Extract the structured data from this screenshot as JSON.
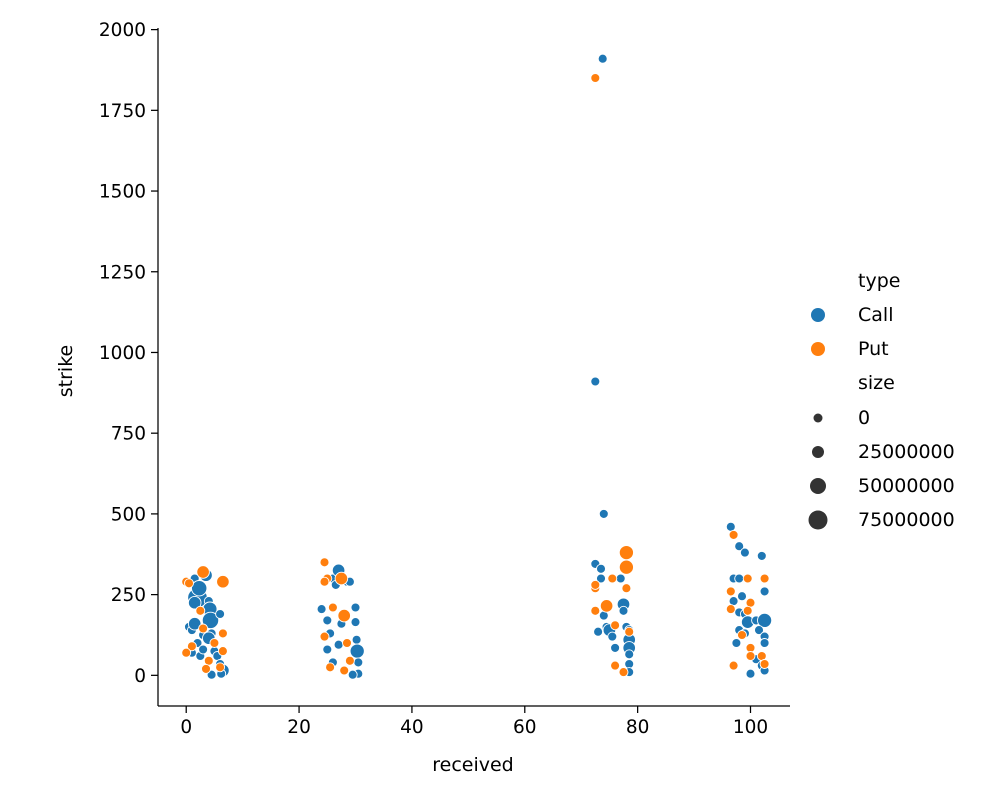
{
  "chart_data": {
    "type": "scatter",
    "title": "",
    "xlabel": "received",
    "ylabel": "strike",
    "xlim": [
      -5,
      107
    ],
    "ylim": [
      -95,
      2005
    ],
    "xticks": [
      0,
      20,
      40,
      60,
      80,
      100
    ],
    "yticks": [
      0,
      250,
      500,
      750,
      1000,
      1250,
      1500,
      1750,
      2000
    ],
    "xtick_labels": [
      "0",
      "20",
      "40",
      "60",
      "80",
      "100"
    ],
    "ytick_labels": [
      "0",
      "250",
      "500",
      "750",
      "1000",
      "1250",
      "1500",
      "1750",
      "2000"
    ],
    "grid": false,
    "legend_placement": "right",
    "hue_title": "type",
    "size_title": "size",
    "hue_colors": {
      "Call": "#1f77b4",
      "Put": "#ff7f0e"
    },
    "size_legend_color": "#333333",
    "size_legend": [
      {
        "label": "0",
        "value": 0
      },
      {
        "label": "25000000",
        "value": 25000000
      },
      {
        "label": "50000000",
        "value": 50000000
      },
      {
        "label": "75000000",
        "value": 75000000
      }
    ],
    "series": [
      {
        "name": "Call",
        "points": [
          [
            1.5,
            300,
            0
          ],
          [
            2,
            240,
            85000000
          ],
          [
            1.5,
            225,
            10000000
          ],
          [
            0.5,
            150,
            0
          ],
          [
            1,
            140,
            0
          ],
          [
            1.5,
            160,
            10000000
          ],
          [
            2,
            100,
            0
          ],
          [
            1,
            70,
            0
          ],
          [
            2.5,
            60,
            0
          ],
          [
            3,
            125,
            0
          ],
          [
            3.5,
            310,
            10000000
          ],
          [
            4,
            230,
            0
          ],
          [
            4.2,
            205,
            20000000
          ],
          [
            4.3,
            170,
            40000000
          ],
          [
            4.5,
            130,
            0
          ],
          [
            4,
            115,
            10000000
          ],
          [
            5,
            75,
            0
          ],
          [
            5.5,
            60,
            0
          ],
          [
            6,
            190,
            0
          ],
          [
            6,
            35,
            0
          ],
          [
            6.5,
            15,
            10000000
          ],
          [
            6.2,
            5,
            0
          ],
          [
            4.5,
            2,
            0
          ],
          [
            2.3,
            270,
            30000000
          ],
          [
            3,
            80,
            0
          ],
          [
            24,
            205,
            0
          ],
          [
            25,
            170,
            0
          ],
          [
            25.5,
            130,
            0
          ],
          [
            26,
            300,
            0
          ],
          [
            26.5,
            280,
            0
          ],
          [
            27,
            325,
            10000000
          ],
          [
            27.5,
            160,
            0
          ],
          [
            27,
            95,
            0
          ],
          [
            28.5,
            290,
            0
          ],
          [
            29,
            290,
            0
          ],
          [
            30,
            210,
            0
          ],
          [
            30,
            165,
            0
          ],
          [
            30.2,
            110,
            0
          ],
          [
            30.3,
            75,
            20000000
          ],
          [
            30.5,
            40,
            0
          ],
          [
            30.5,
            5,
            0
          ],
          [
            29.5,
            2,
            0
          ],
          [
            26,
            40,
            0
          ],
          [
            25,
            80,
            0
          ],
          [
            72.5,
            910,
            0
          ],
          [
            73.8,
            1910,
            0
          ],
          [
            74,
            500,
            0
          ],
          [
            72.5,
            345,
            0
          ],
          [
            73.5,
            330,
            0
          ],
          [
            73.5,
            300,
            0
          ],
          [
            74,
            185,
            0
          ],
          [
            74.5,
            150,
            0
          ],
          [
            75,
            140,
            10000000
          ],
          [
            73,
            135,
            0
          ],
          [
            75.5,
            120,
            0
          ],
          [
            76,
            85,
            0
          ],
          [
            77,
            300,
            0
          ],
          [
            77.5,
            220,
            10000000
          ],
          [
            77.5,
            200,
            0
          ],
          [
            78,
            150,
            0
          ],
          [
            78.5,
            140,
            0
          ],
          [
            78.5,
            110,
            10000000
          ],
          [
            78.5,
            85,
            10000000
          ],
          [
            78.5,
            65,
            0
          ],
          [
            78.5,
            35,
            0
          ],
          [
            78.5,
            10,
            0
          ],
          [
            96.5,
            460,
            0
          ],
          [
            98,
            400,
            0
          ],
          [
            99,
            380,
            0
          ],
          [
            102,
            370,
            0
          ],
          [
            97,
            300,
            0
          ],
          [
            98,
            300,
            0
          ],
          [
            98.5,
            245,
            0
          ],
          [
            102.5,
            260,
            0
          ],
          [
            97,
            230,
            0
          ],
          [
            98,
            195,
            0
          ],
          [
            99,
            190,
            0
          ],
          [
            99.5,
            165,
            10000000
          ],
          [
            101,
            170,
            0
          ],
          [
            102.5,
            170,
            20000000
          ],
          [
            98,
            140,
            0
          ],
          [
            99,
            130,
            0
          ],
          [
            101.5,
            140,
            0
          ],
          [
            102.5,
            120,
            0
          ],
          [
            102.5,
            100,
            0
          ],
          [
            97.5,
            100,
            0
          ],
          [
            101,
            50,
            0
          ],
          [
            102,
            30,
            0
          ],
          [
            102.5,
            15,
            0
          ],
          [
            100,
            5,
            0
          ]
        ]
      },
      {
        "name": "Put",
        "points": [
          [
            0,
            290,
            0
          ],
          [
            0.5,
            285,
            0
          ],
          [
            3,
            320,
            10000000
          ],
          [
            2.5,
            200,
            0
          ],
          [
            1,
            90,
            0
          ],
          [
            3,
            145,
            0
          ],
          [
            5,
            100,
            0
          ],
          [
            0,
            70,
            0
          ],
          [
            6.5,
            290,
            10000000
          ],
          [
            6.5,
            130,
            0
          ],
          [
            6.5,
            75,
            0
          ],
          [
            4,
            45,
            0
          ],
          [
            3.5,
            20,
            0
          ],
          [
            6,
            25,
            0
          ],
          [
            24.5,
            350,
            0
          ],
          [
            25,
            300,
            0
          ],
          [
            24.5,
            290,
            0
          ],
          [
            26,
            210,
            0
          ],
          [
            24.5,
            120,
            0
          ],
          [
            27.5,
            300,
            10000000
          ],
          [
            28,
            185,
            10000000
          ],
          [
            28.5,
            100,
            0
          ],
          [
            29,
            45,
            0
          ],
          [
            25.5,
            25,
            0
          ],
          [
            28,
            15,
            0
          ],
          [
            72.5,
            1850,
            0
          ],
          [
            72.5,
            200,
            0
          ],
          [
            72.5,
            270,
            0
          ],
          [
            72.5,
            280,
            0
          ],
          [
            74.5,
            215,
            10000000
          ],
          [
            75.5,
            300,
            0
          ],
          [
            76,
            155,
            0
          ],
          [
            78,
            380,
            20000000
          ],
          [
            78,
            335,
            20000000
          ],
          [
            78,
            270,
            0
          ],
          [
            78.5,
            135,
            0
          ],
          [
            76,
            30,
            0
          ],
          [
            77.5,
            10,
            0
          ],
          [
            97,
            435,
            0
          ],
          [
            96.5,
            260,
            0
          ],
          [
            96.5,
            205,
            0
          ],
          [
            99.5,
            300,
            0
          ],
          [
            102.5,
            300,
            0
          ],
          [
            100,
            225,
            0
          ],
          [
            99.5,
            200,
            0
          ],
          [
            98.5,
            125,
            0
          ],
          [
            100,
            85,
            0
          ],
          [
            100,
            60,
            0
          ],
          [
            102,
            60,
            0
          ],
          [
            102.5,
            35,
            0
          ],
          [
            97,
            30,
            0
          ]
        ]
      }
    ]
  }
}
